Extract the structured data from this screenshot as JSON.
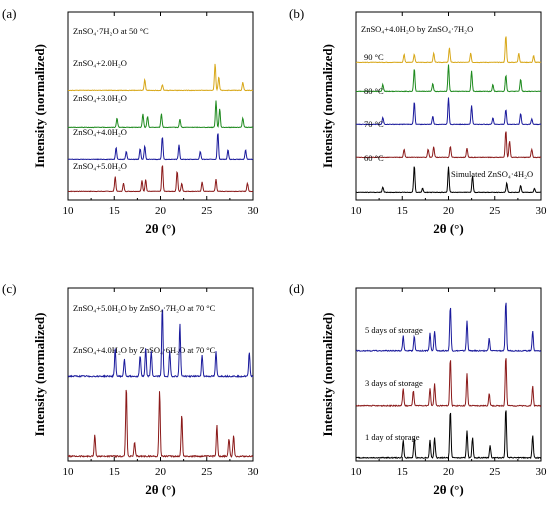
{
  "chart_data": [
    {
      "type": "line",
      "panel": "(a)",
      "xlabel": "2θ (°)",
      "ylabel": "Intensity (normalized)",
      "xlim": [
        10,
        30
      ],
      "xticks": [
        "10",
        "15",
        "20",
        "25",
        "30"
      ],
      "series": [
        {
          "name": "ZnSO₄+5.0H₂O",
          "color": "#8b1a1a",
          "peaks": [
            [
              15.1,
              0.55
            ],
            [
              16.0,
              0.3
            ],
            [
              18.0,
              0.4
            ],
            [
              18.4,
              0.45
            ],
            [
              20.2,
              1.0
            ],
            [
              21.8,
              0.75
            ],
            [
              22.3,
              0.3
            ],
            [
              24.5,
              0.35
            ],
            [
              26.0,
              0.45
            ],
            [
              29.4,
              0.3
            ]
          ]
        },
        {
          "name": "ZnSO₄+4.0H₂O",
          "color": "#1a1a9c",
          "peaks": [
            [
              15.2,
              0.45
            ],
            [
              16.3,
              0.3
            ],
            [
              17.8,
              0.4
            ],
            [
              18.3,
              0.5
            ],
            [
              20.2,
              0.85
            ],
            [
              22.0,
              0.55
            ],
            [
              24.3,
              0.3
            ],
            [
              26.2,
              1.0
            ],
            [
              27.3,
              0.35
            ],
            [
              29.2,
              0.35
            ]
          ]
        },
        {
          "name": "ZnSO₄+3.0H₂O",
          "color": "#1e8a1e",
          "peaks": [
            [
              15.3,
              0.35
            ],
            [
              18.1,
              0.5
            ],
            [
              18.6,
              0.4
            ],
            [
              20.1,
              0.5
            ],
            [
              22.1,
              0.3
            ],
            [
              26.0,
              1.0
            ],
            [
              26.4,
              0.7
            ],
            [
              28.9,
              0.35
            ]
          ]
        },
        {
          "name": "ZnSO₄+2.0H₂O",
          "color": "#d8a81a",
          "peaks": [
            [
              18.3,
              0.4
            ],
            [
              20.2,
              0.2
            ],
            [
              25.9,
              1.0
            ],
            [
              26.3,
              0.5
            ],
            [
              28.9,
              0.3
            ]
          ]
        }
      ],
      "annotations": [
        "ZnSO₄·7H₂O at 50 °C"
      ]
    },
    {
      "type": "line",
      "panel": "(b)",
      "xlabel": "2θ (°)",
      "ylabel": "Intensity (normalized)",
      "xlim": [
        10,
        30
      ],
      "xticks": [
        "10",
        "15",
        "20",
        "25",
        "30"
      ],
      "series": [
        {
          "name": "Simulated ZnSO₄·4H₂O",
          "color": "#000000",
          "peaks": [
            [
              12.9,
              0.2
            ],
            [
              16.3,
              1.0
            ],
            [
              17.2,
              0.15
            ],
            [
              20.0,
              0.95
            ],
            [
              22.6,
              0.6
            ],
            [
              26.3,
              0.35
            ],
            [
              27.8,
              0.25
            ],
            [
              29.3,
              0.15
            ]
          ]
        },
        {
          "name": "60 °C",
          "color": "#8b1a1a",
          "peaks": [
            [
              15.2,
              0.3
            ],
            [
              17.8,
              0.3
            ],
            [
              18.4,
              0.4
            ],
            [
              20.2,
              0.4
            ],
            [
              22.0,
              0.35
            ],
            [
              26.2,
              1.0
            ],
            [
              26.6,
              0.6
            ],
            [
              29.0,
              0.3
            ]
          ]
        },
        {
          "name": "70 °C",
          "color": "#1a1a9c",
          "peaks": [
            [
              12.9,
              0.25
            ],
            [
              16.3,
              0.85
            ],
            [
              18.3,
              0.3
            ],
            [
              20.0,
              1.0
            ],
            [
              22.5,
              0.7
            ],
            [
              24.8,
              0.25
            ],
            [
              26.2,
              0.55
            ],
            [
              27.8,
              0.4
            ],
            [
              29.0,
              0.2
            ]
          ]
        },
        {
          "name": "80 °C",
          "color": "#1e8a1e",
          "peaks": [
            [
              12.9,
              0.25
            ],
            [
              16.3,
              0.85
            ],
            [
              18.3,
              0.3
            ],
            [
              20.0,
              1.0
            ],
            [
              22.5,
              0.75
            ],
            [
              24.8,
              0.25
            ],
            [
              26.2,
              0.6
            ],
            [
              27.8,
              0.45
            ]
          ]
        },
        {
          "name": "90 °C",
          "color": "#d8a81a",
          "peaks": [
            [
              15.2,
              0.3
            ],
            [
              16.3,
              0.3
            ],
            [
              18.4,
              0.35
            ],
            [
              20.1,
              0.55
            ],
            [
              22.4,
              0.35
            ],
            [
              26.2,
              1.0
            ],
            [
              27.6,
              0.35
            ],
            [
              29.2,
              0.25
            ]
          ]
        }
      ],
      "annotations": [
        "ZnSO₄+4.0H₂O by ZnSO₄·7H₂O"
      ]
    },
    {
      "type": "line",
      "panel": "(c)",
      "xlabel": "2θ (°)",
      "ylabel": "Intensity (normalized)",
      "xlim": [
        10,
        30
      ],
      "xticks": [
        "10",
        "15",
        "20",
        "25",
        "30"
      ],
      "series": [
        {
          "name": "ZnSO₄+4.0H₂O by ZnSO₄·6H₂O at 70 °C",
          "color": "#8b1a1a",
          "peaks": [
            [
              12.9,
              0.3
            ],
            [
              16.3,
              1.0
            ],
            [
              17.2,
              0.2
            ],
            [
              19.9,
              0.95
            ],
            [
              22.3,
              0.6
            ],
            [
              26.1,
              0.45
            ],
            [
              27.4,
              0.25
            ],
            [
              27.9,
              0.3
            ]
          ]
        },
        {
          "name": "ZnSO₄+5.0H₂O by ZnSO₄·7H₂O at 70 °C",
          "color": "#1a1a9c",
          "peaks": [
            [
              15.1,
              0.4
            ],
            [
              16.1,
              0.25
            ],
            [
              17.8,
              0.3
            ],
            [
              18.4,
              0.4
            ],
            [
              19.0,
              0.35
            ],
            [
              20.2,
              1.0
            ],
            [
              21.0,
              0.35
            ],
            [
              22.1,
              0.75
            ],
            [
              24.5,
              0.3
            ],
            [
              26.0,
              0.35
            ],
            [
              29.6,
              0.35
            ]
          ]
        }
      ]
    },
    {
      "type": "line",
      "panel": "(d)",
      "xlabel": "2θ (°)",
      "ylabel": "Intensity (normalized)",
      "xlim": [
        10,
        30
      ],
      "xticks": [
        "10",
        "15",
        "20",
        "25",
        "30"
      ],
      "series": [
        {
          "name": "1 day of storage",
          "color": "#000000",
          "peaks": [
            [
              15.1,
              0.35
            ],
            [
              16.3,
              0.4
            ],
            [
              18.0,
              0.35
            ],
            [
              18.5,
              0.4
            ],
            [
              20.2,
              0.95
            ],
            [
              22.0,
              0.55
            ],
            [
              22.6,
              0.4
            ],
            [
              24.5,
              0.25
            ],
            [
              26.2,
              1.0
            ],
            [
              29.1,
              0.45
            ]
          ]
        },
        {
          "name": "3 days of storage",
          "color": "#8b1a1a",
          "peaks": [
            [
              15.1,
              0.35
            ],
            [
              16.2,
              0.3
            ],
            [
              18.0,
              0.35
            ],
            [
              18.5,
              0.45
            ],
            [
              20.2,
              0.95
            ],
            [
              22.0,
              0.65
            ],
            [
              24.4,
              0.25
            ],
            [
              26.2,
              1.0
            ],
            [
              29.1,
              0.4
            ]
          ]
        },
        {
          "name": "5 days of storage",
          "color": "#1a1a9c",
          "peaks": [
            [
              15.1,
              0.3
            ],
            [
              16.3,
              0.3
            ],
            [
              18.0,
              0.35
            ],
            [
              18.5,
              0.4
            ],
            [
              20.2,
              0.9
            ],
            [
              22.0,
              0.6
            ],
            [
              24.4,
              0.25
            ],
            [
              26.2,
              1.0
            ],
            [
              29.1,
              0.4
            ]
          ]
        }
      ]
    }
  ]
}
